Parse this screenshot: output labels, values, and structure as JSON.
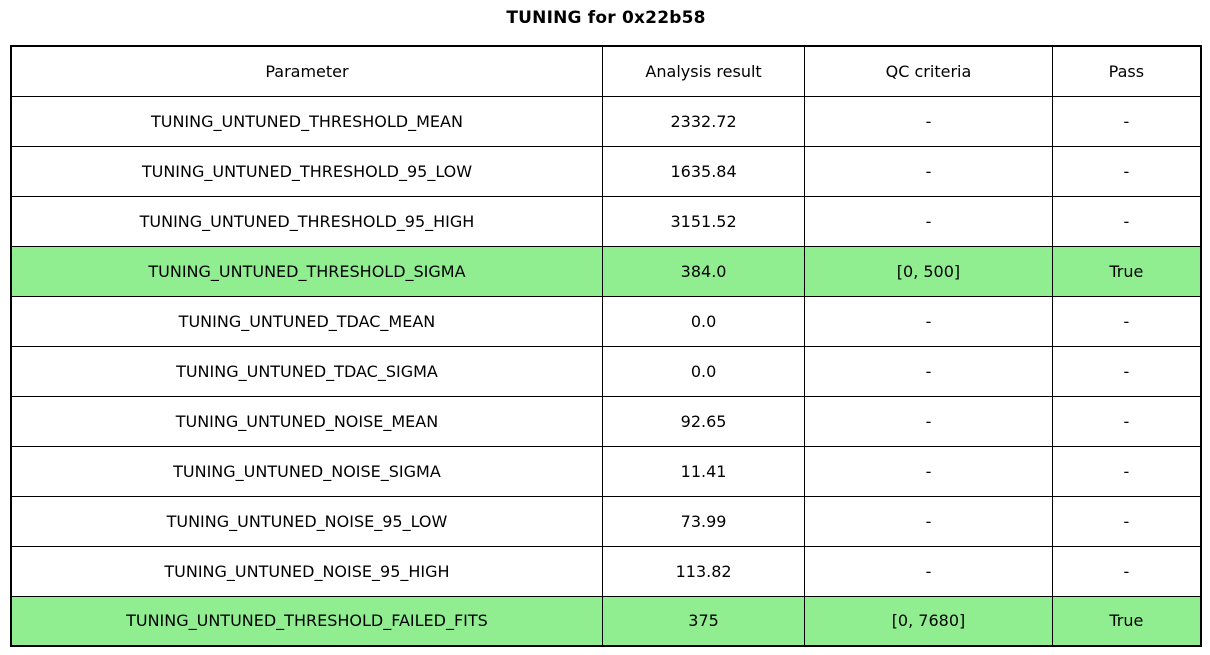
{
  "title": "TUNING for 0x22b58",
  "colors": {
    "pass_highlight_green": "#90EE90",
    "border": "#000000",
    "background": "#FFFFFF",
    "text": "#000000"
  },
  "chart_data": {
    "type": "table",
    "title": "TUNING for 0x22b58",
    "columns": [
      "Parameter",
      "Analysis result",
      "QC criteria",
      "Pass"
    ],
    "rows": [
      {
        "parameter": "TUNING_UNTUNED_THRESHOLD_MEAN",
        "result": "2332.72",
        "qc": "-",
        "pass": "-",
        "highlight": false
      },
      {
        "parameter": "TUNING_UNTUNED_THRESHOLD_95_LOW",
        "result": "1635.84",
        "qc": "-",
        "pass": "-",
        "highlight": false
      },
      {
        "parameter": "TUNING_UNTUNED_THRESHOLD_95_HIGH",
        "result": "3151.52",
        "qc": "-",
        "pass": "-",
        "highlight": false
      },
      {
        "parameter": "TUNING_UNTUNED_THRESHOLD_SIGMA",
        "result": "384.0",
        "qc": "[0, 500]",
        "pass": "True",
        "highlight": true
      },
      {
        "parameter": "TUNING_UNTUNED_TDAC_MEAN",
        "result": "0.0",
        "qc": "-",
        "pass": "-",
        "highlight": false
      },
      {
        "parameter": "TUNING_UNTUNED_TDAC_SIGMA",
        "result": "0.0",
        "qc": "-",
        "pass": "-",
        "highlight": false
      },
      {
        "parameter": "TUNING_UNTUNED_NOISE_MEAN",
        "result": "92.65",
        "qc": "-",
        "pass": "-",
        "highlight": false
      },
      {
        "parameter": "TUNING_UNTUNED_NOISE_SIGMA",
        "result": "11.41",
        "qc": "-",
        "pass": "-",
        "highlight": false
      },
      {
        "parameter": "TUNING_UNTUNED_NOISE_95_LOW",
        "result": "73.99",
        "qc": "-",
        "pass": "-",
        "highlight": false
      },
      {
        "parameter": "TUNING_UNTUNED_NOISE_95_HIGH",
        "result": "113.82",
        "qc": "-",
        "pass": "-",
        "highlight": false
      },
      {
        "parameter": "TUNING_UNTUNED_THRESHOLD_FAILED_FITS",
        "result": "375",
        "qc": "[0, 7680]",
        "pass": "True",
        "highlight": true
      }
    ]
  }
}
